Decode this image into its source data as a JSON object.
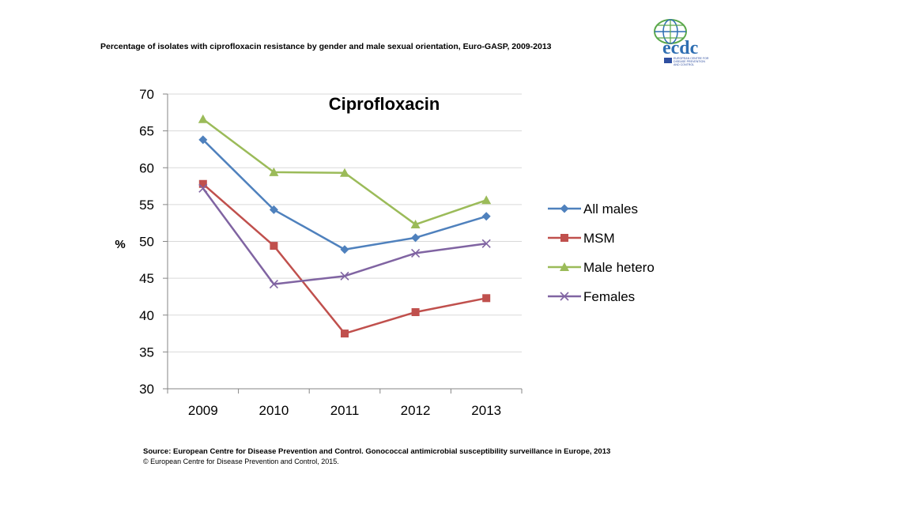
{
  "header": {
    "title": "Percentage of isolates with ciprofloxacin  resistance by gender and male sexual orientation, Euro-GASP,  2009-2013"
  },
  "logo": {
    "text": "ecdc",
    "subtext": [
      "EUROPEAN CENTRE FOR",
      "DISEASE PREVENTION",
      "AND CONTROL"
    ]
  },
  "footer": {
    "source": "Source: European Centre for Disease Prevention and Control.  Gonococcal antimicrobial susceptibility surveillance in Europe, 2013",
    "copyright": "© European Centre for Disease Prevention and Control, 2015."
  },
  "chart_data": {
    "type": "line",
    "title": "Ciprofloxacin",
    "xlabel": "",
    "ylabel": "%",
    "ylim": [
      30,
      70
    ],
    "ytick_step": 5,
    "grid": true,
    "legend_position": "right",
    "categories": [
      "2009",
      "2010",
      "2011",
      "2012",
      "2013"
    ],
    "series": [
      {
        "name": "All males",
        "color": "#4F81BD",
        "marker": "diamond",
        "values": [
          63.8,
          54.3,
          48.9,
          50.5,
          53.4
        ]
      },
      {
        "name": "MSM",
        "color": "#C0504D",
        "marker": "square",
        "values": [
          57.8,
          49.4,
          37.5,
          40.4,
          42.3
        ]
      },
      {
        "name": "Male hetero",
        "color": "#9BBB59",
        "marker": "triangle",
        "values": [
          66.6,
          59.4,
          59.3,
          52.3,
          55.6
        ]
      },
      {
        "name": "Females",
        "color": "#8064A2",
        "marker": "x",
        "values": [
          57.2,
          44.2,
          45.3,
          48.4,
          49.7
        ]
      }
    ]
  }
}
